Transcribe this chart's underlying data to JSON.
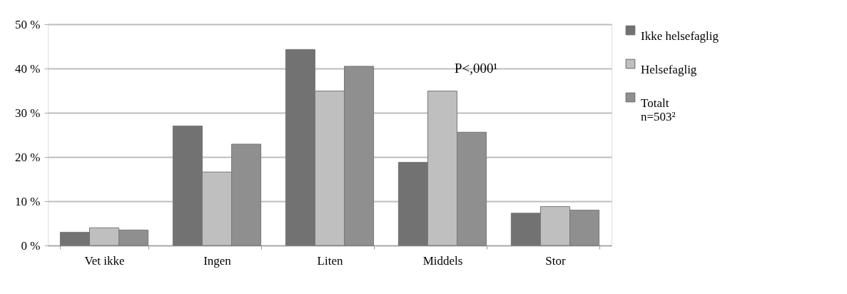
{
  "chart_data": {
    "type": "bar",
    "categories": [
      "Vet ikke",
      "Ingen",
      "Liten",
      "Middels",
      "Stor"
    ],
    "series": [
      {
        "name": "Ikke helsefaglig",
        "color": "#727272",
        "values": [
          3.0,
          27.0,
          44.3,
          18.8,
          7.3
        ]
      },
      {
        "name": "Helsefaglig",
        "color": "#bfbfbf",
        "values": [
          4.0,
          16.6,
          34.9,
          34.9,
          8.8
        ]
      },
      {
        "name": "Totalt\nn=503²",
        "color": "#8f8f8f",
        "values": [
          3.5,
          22.9,
          40.5,
          25.6,
          8.0
        ]
      }
    ],
    "ylim": [
      0,
      50
    ],
    "yticks": [
      {
        "value": 0,
        "label": "0 %"
      },
      {
        "value": 10,
        "label": "10 %"
      },
      {
        "value": 20,
        "label": "20 %"
      },
      {
        "value": 30,
        "label": "30 %"
      },
      {
        "value": 40,
        "label": "40 %"
      },
      {
        "value": 50,
        "label": "50 %"
      }
    ],
    "grid": "y",
    "legend": "right",
    "annotations": [
      "P<,000¹"
    ]
  }
}
